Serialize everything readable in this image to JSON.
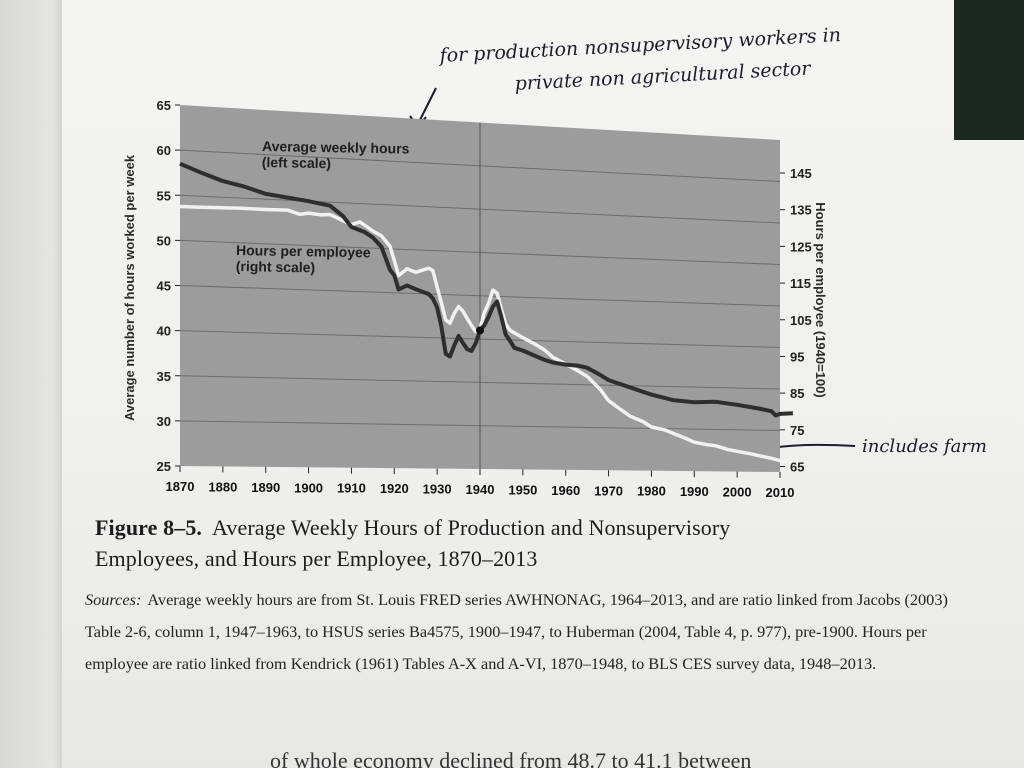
{
  "chart_data": {
    "type": "line",
    "x_ticks": [
      1870,
      1880,
      1890,
      1900,
      1910,
      1920,
      1930,
      1940,
      1950,
      1960,
      1970,
      1980,
      1990,
      2000,
      2010
    ],
    "left_axis": {
      "label": "Average number of hours worked per week",
      "ticks": [
        25,
        30,
        35,
        40,
        45,
        50,
        55,
        60,
        65
      ],
      "range": [
        25,
        65
      ]
    },
    "right_axis": {
      "label": "Hours per employee (1940=100)",
      "ticks": [
        65,
        75,
        85,
        95,
        105,
        115,
        125,
        135,
        145
      ],
      "range": [
        65,
        145
      ]
    },
    "grid": true,
    "series": [
      {
        "name": "Average weekly hours",
        "label_lines": [
          "Average weekly hours",
          "(left scale)"
        ],
        "axis": "left",
        "color": "#2e2e2e",
        "points": [
          [
            1870,
            58.5
          ],
          [
            1875,
            57.6
          ],
          [
            1880,
            56.8
          ],
          [
            1885,
            56.3
          ],
          [
            1890,
            55.6
          ],
          [
            1895,
            55.3
          ],
          [
            1900,
            55.0
          ],
          [
            1905,
            54.6
          ],
          [
            1908,
            53.5
          ],
          [
            1910,
            52.3
          ],
          [
            1913,
            51.8
          ],
          [
            1915,
            51.2
          ],
          [
            1917,
            50.2
          ],
          [
            1919,
            47.6
          ],
          [
            1920,
            47.0
          ],
          [
            1921,
            45.4
          ],
          [
            1923,
            45.9
          ],
          [
            1925,
            45.5
          ],
          [
            1928,
            45.0
          ],
          [
            1929,
            44.5
          ],
          [
            1930,
            43.5
          ],
          [
            1931,
            41.3
          ],
          [
            1932,
            38.2
          ],
          [
            1933,
            37.9
          ],
          [
            1934,
            39.2
          ],
          [
            1935,
            40.3
          ],
          [
            1936,
            39.5
          ],
          [
            1937,
            38.8
          ],
          [
            1938,
            38.6
          ],
          [
            1939,
            39.5
          ],
          [
            1940,
            41.0
          ],
          [
            1941,
            41.6
          ],
          [
            1942,
            42.6
          ],
          [
            1943,
            43.8
          ],
          [
            1944,
            44.4
          ],
          [
            1945,
            42.6
          ],
          [
            1946,
            40.6
          ],
          [
            1947,
            39.9
          ],
          [
            1948,
            39.1
          ],
          [
            1950,
            38.8
          ],
          [
            1953,
            38.2
          ],
          [
            1955,
            37.8
          ],
          [
            1957,
            37.5
          ],
          [
            1960,
            37.3
          ],
          [
            1963,
            37.2
          ],
          [
            1965,
            37.0
          ],
          [
            1968,
            36.2
          ],
          [
            1970,
            35.6
          ],
          [
            1975,
            34.8
          ],
          [
            1980,
            34.0
          ],
          [
            1985,
            33.4
          ],
          [
            1990,
            33.2
          ],
          [
            1995,
            33.3
          ],
          [
            2000,
            33.0
          ],
          [
            2005,
            32.6
          ],
          [
            2008,
            32.3
          ],
          [
            2009,
            31.8
          ],
          [
            2010,
            32.0
          ],
          [
            2013,
            32.1
          ]
        ]
      },
      {
        "name": "Hours per employee",
        "label_lines": [
          "Hours per employee",
          "(right scale)"
        ],
        "axis": "right",
        "color": "#f1f1f1",
        "points": [
          [
            1870,
            128.0
          ],
          [
            1875,
            128.1
          ],
          [
            1880,
            128.2
          ],
          [
            1885,
            128.3
          ],
          [
            1890,
            128.3
          ],
          [
            1895,
            128.4
          ],
          [
            1898,
            127.5
          ],
          [
            1900,
            127.9
          ],
          [
            1903,
            127.6
          ],
          [
            1905,
            127.8
          ],
          [
            1908,
            126.4
          ],
          [
            1910,
            125.5
          ],
          [
            1912,
            126.3
          ],
          [
            1915,
            124.1
          ],
          [
            1917,
            123.0
          ],
          [
            1919,
            120.4
          ],
          [
            1920,
            116.8
          ],
          [
            1921,
            113.0
          ],
          [
            1923,
            114.8
          ],
          [
            1925,
            114.0
          ],
          [
            1928,
            115.2
          ],
          [
            1929,
            114.6
          ],
          [
            1930,
            110.4
          ],
          [
            1931,
            106.4
          ],
          [
            1932,
            102.0
          ],
          [
            1933,
            101.2
          ],
          [
            1934,
            103.8
          ],
          [
            1935,
            105.6
          ],
          [
            1936,
            104.4
          ],
          [
            1937,
            102.6
          ],
          [
            1938,
            100.8
          ],
          [
            1939,
            99.2
          ],
          [
            1940,
            100.0
          ],
          [
            1941,
            104.2
          ],
          [
            1942,
            106.7
          ],
          [
            1943,
            110.2
          ],
          [
            1944,
            109.4
          ],
          [
            1945,
            105.2
          ],
          [
            1946,
            101.4
          ],
          [
            1947,
            99.9
          ],
          [
            1948,
            99.2
          ],
          [
            1950,
            98.0
          ],
          [
            1953,
            96.3
          ],
          [
            1955,
            95.0
          ],
          [
            1957,
            93.1
          ],
          [
            1960,
            91.4
          ],
          [
            1963,
            89.6
          ],
          [
            1965,
            88.3
          ],
          [
            1968,
            85.0
          ],
          [
            1970,
            82.0
          ],
          [
            1973,
            79.6
          ],
          [
            1975,
            78.0
          ],
          [
            1978,
            76.6
          ],
          [
            1980,
            75.2
          ],
          [
            1983,
            74.5
          ],
          [
            1985,
            73.6
          ],
          [
            1988,
            72.3
          ],
          [
            1990,
            71.3
          ],
          [
            1993,
            70.7
          ],
          [
            1995,
            70.4
          ],
          [
            1998,
            69.4
          ],
          [
            2000,
            69.0
          ],
          [
            2003,
            68.4
          ],
          [
            2005,
            67.9
          ],
          [
            2008,
            67.2
          ],
          [
            2010,
            66.6
          ],
          [
            2013,
            66.2
          ]
        ]
      }
    ],
    "reference_line_x": 1940
  },
  "annotations": {
    "top_line1": "for production nonsupervisory workers in",
    "top_line2": "private non agricultural sector",
    "right_note": "includes farm"
  },
  "caption": {
    "label": "Figure 8–5.",
    "title_line1": "Average Weekly Hours of Production and Nonsupervisory",
    "title_line2": "Employees, and Hours per Employee, 1870–2013",
    "sources_label": "Sources:",
    "sources_text": "Average weekly hours are from St. Louis FRED series AWHNONAG, 1964–2013, and are ratio linked from Jacobs (2003) Table 2-6, column 1, 1947–1963, to HSUS series Ba4575, 1900–1947, to Huberman (2004, Table 4, p. 977), pre-1900. Hours per employee are ratio linked from Kendrick (1961) Tables A-X and A-VI, 1870–1948, to BLS CES survey data, 1948–2013."
  },
  "body_text_fragment": "of whole economy declined from 48.7 to 41.1 between"
}
